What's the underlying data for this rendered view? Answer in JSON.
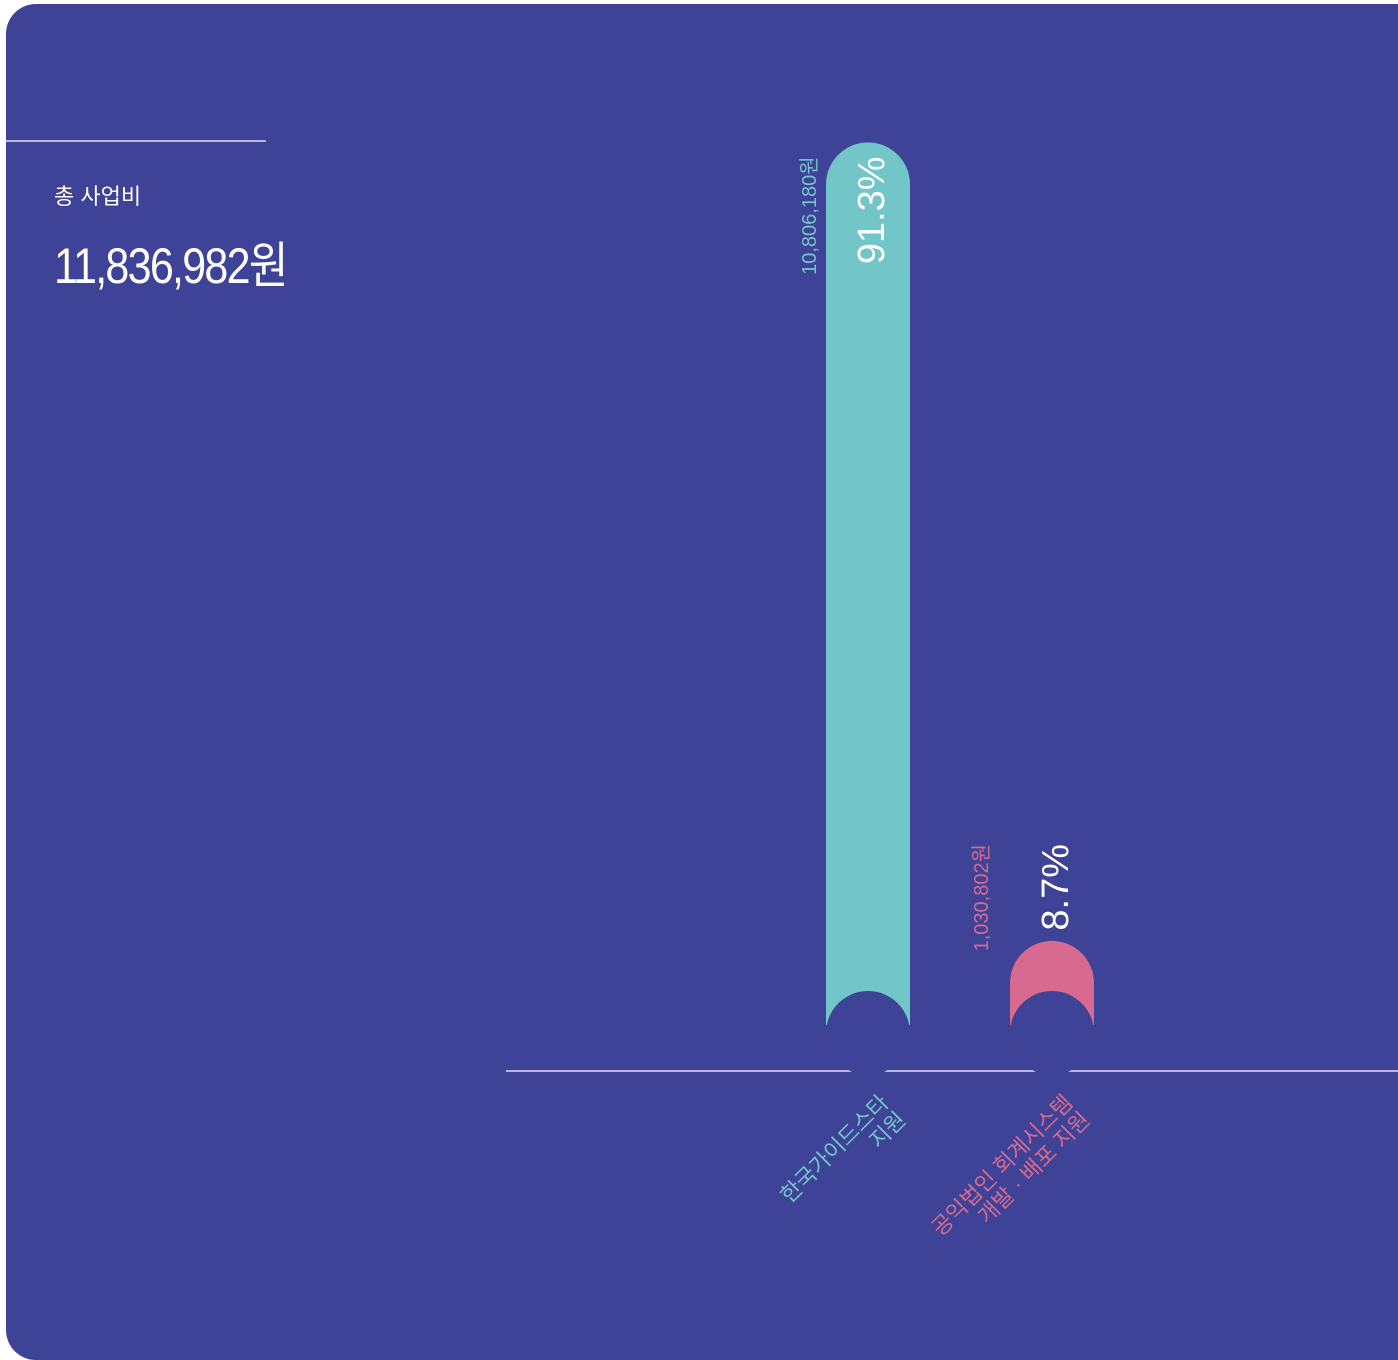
{
  "summary": {
    "total_label": "총 사업비",
    "total_value": "11,836,982원"
  },
  "chart_data": {
    "type": "bar",
    "categories": [
      [
        "한국가이드스타",
        "지원"
      ],
      [
        "공익법인 회계시스템",
        "개발 · 배포 지원"
      ]
    ],
    "values": [
      91.3,
      8.7
    ],
    "value_labels": [
      "91.3%",
      "8.7%"
    ],
    "amount_labels": [
      "10,806,180원",
      "1,030,802원"
    ],
    "colors": [
      "#73c6c8",
      "#d86a90"
    ],
    "background": "#3e4397",
    "ylim": [
      0,
      100
    ]
  }
}
